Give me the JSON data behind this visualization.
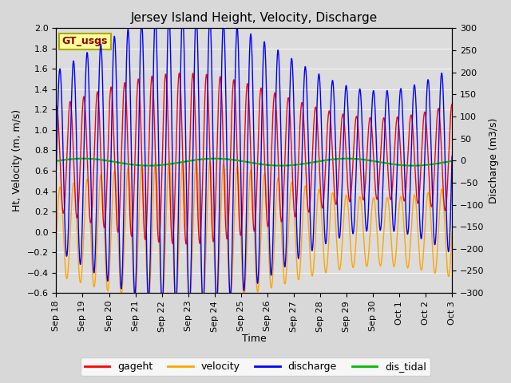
{
  "title": "Jersey Island Height, Velocity, Discharge",
  "ylabel_left": "Ht, Velocity (m, m/s)",
  "ylabel_right": "Discharge (m3/s)",
  "xlabel": "Time",
  "ylim_left": [
    -0.6,
    2.0
  ],
  "ylim_right": [
    -300,
    300
  ],
  "colors": {
    "gageht": "#FF0000",
    "velocity": "#FFA500",
    "discharge": "#0000FF",
    "dis_tidal": "#00BB00"
  },
  "legend_label": "GT_usgs",
  "bg_color": "#d8d8d8",
  "plot_bg": "#dcdcdc",
  "tidal_period_hours": 12.4,
  "gageht_mean": 0.72,
  "gageht_amp_base": 0.62,
  "gageht_amp_mod": 0.22,
  "velocity_amp_base": 0.52,
  "velocity_amp_mod": 0.05,
  "discharge_amp_base": 245,
  "discharge_amp_mod": 20,
  "dis_tidal_mean": 0.685,
  "dis_tidal_amp": 0.035,
  "dis_tidal_period_days": 5.0,
  "spring_neap_period_days": 14.76,
  "title_fontsize": 11,
  "axis_label_fontsize": 9,
  "tick_fontsize": 8,
  "legend_fontsize": 9,
  "line_width": 1.0,
  "yticks_left": [
    -0.6,
    -0.4,
    -0.2,
    0.0,
    0.2,
    0.4,
    0.6,
    0.8,
    1.0,
    1.2,
    1.4,
    1.6,
    1.8,
    2.0
  ],
  "yticks_right": [
    -300,
    -250,
    -200,
    -150,
    -100,
    -50,
    0,
    50,
    100,
    150,
    200,
    250,
    300
  ]
}
